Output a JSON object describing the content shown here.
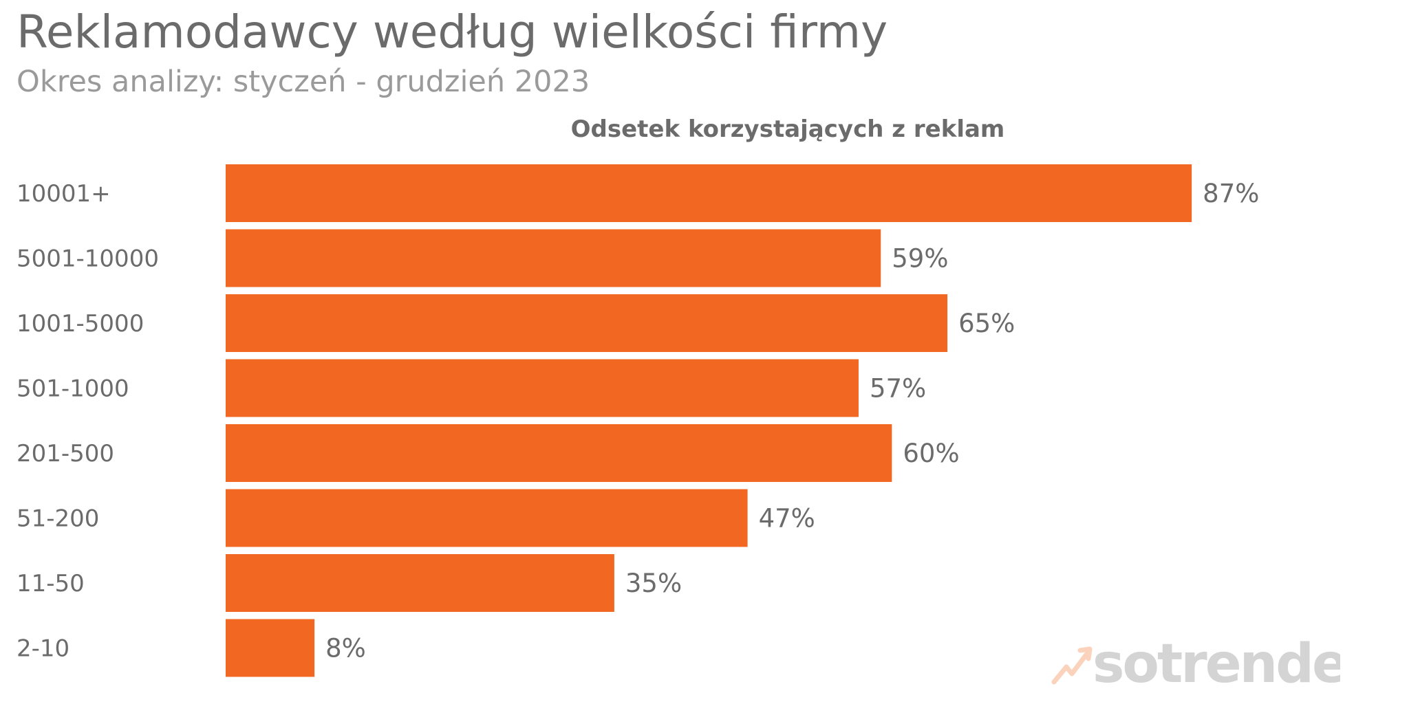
{
  "title": "Reklamodawcy według wielkości firmy",
  "subtitle": "Okres analizy: styczeń - grudzień 2023",
  "colors": {
    "bar": "#f26722",
    "text": "#6b6b6b",
    "logo_text": "#d4d4d4",
    "logo_mark": "#fbd3bd"
  },
  "logo": {
    "text": "sotrender",
    "icon": "trend-arrow-icon"
  },
  "chart_data": {
    "type": "bar",
    "orientation": "horizontal",
    "title": "Odsetek korzystających z reklam",
    "categories": [
      "10001+",
      "5001-10000",
      "1001-5000",
      "501-1000",
      "201-500",
      "51-200",
      "11-50",
      "2-10"
    ],
    "values": [
      87,
      59,
      65,
      57,
      60,
      47,
      35,
      8
    ],
    "value_labels": [
      "87%",
      "59%",
      "65%",
      "57%",
      "60%",
      "47%",
      "35%",
      "8%"
    ],
    "xlim": [
      0,
      100
    ],
    "grid": false,
    "legend": "none"
  }
}
